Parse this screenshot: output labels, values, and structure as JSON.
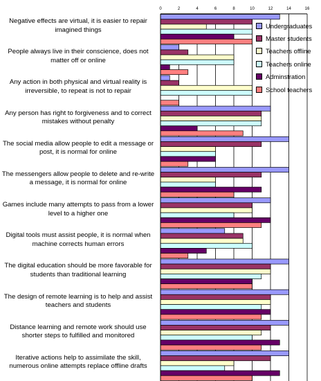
{
  "chart_data": {
    "type": "bar",
    "orientation": "horizontal",
    "xlim": [
      0,
      16
    ],
    "ticks": [
      "0",
      "2",
      "4",
      "6",
      "8",
      "10",
      "12",
      "14",
      "16"
    ],
    "grid": true,
    "legend_position": "top-right",
    "categories": [
      "Negative effects are virtual, it is easier to repair imagined things",
      "People always live in their conscience, does not matter off or online",
      "Any action in both physical and virtual reality is irreversible, to repeat is not to repair",
      "Any person has right to forgiveness and to correct mistakes without penalty",
      "The social media allow people to edit a message or post, it is normal for online",
      "The messengers allow people to delete and re-write a message, it is normal for online",
      "Games include many attempts to pass from a lower level to a higher one",
      "Digital tools must assist people, it is normal when machine corrects human errors",
      "The digital education should be more favorable for students than traditional learning",
      "The design of remote learning is to help and assist teachers and students",
      "Distance learning and remote work should use shorter steps to fulfilled and monitored",
      "Iterative actions help to assimilate the skill, numerous online attempts replace offline drafts"
    ],
    "series": [
      {
        "name": "Undergraduates",
        "color": "#9999ff",
        "values": [
          13,
          2,
          1,
          12,
          14,
          14,
          12,
          7,
          14,
          14,
          14,
          14
        ]
      },
      {
        "name": "Master students",
        "color": "#993366",
        "values": [
          10,
          3,
          2,
          11,
          11,
          11,
          10,
          9,
          12,
          12,
          12,
          12
        ]
      },
      {
        "name": "Teachers offline",
        "color": "#ffffcc",
        "values": [
          5,
          8,
          10,
          11,
          6,
          6,
          10,
          9,
          12,
          12,
          11,
          8
        ]
      },
      {
        "name": "Teachers online",
        "color": "#ccffff",
        "values": [
          10,
          8,
          10,
          11,
          6,
          6,
          8,
          10,
          11,
          11,
          10,
          7
        ]
      },
      {
        "name": "Adminstration",
        "color": "#660066",
        "values": [
          8,
          1,
          0,
          4,
          6,
          11,
          12,
          5,
          10,
          12,
          13,
          13
        ]
      },
      {
        "name": "School teachers",
        "color": "#ff8080",
        "values": [
          10,
          3,
          2,
          9,
          3,
          8,
          11,
          3,
          10,
          11,
          11,
          10
        ]
      }
    ]
  }
}
